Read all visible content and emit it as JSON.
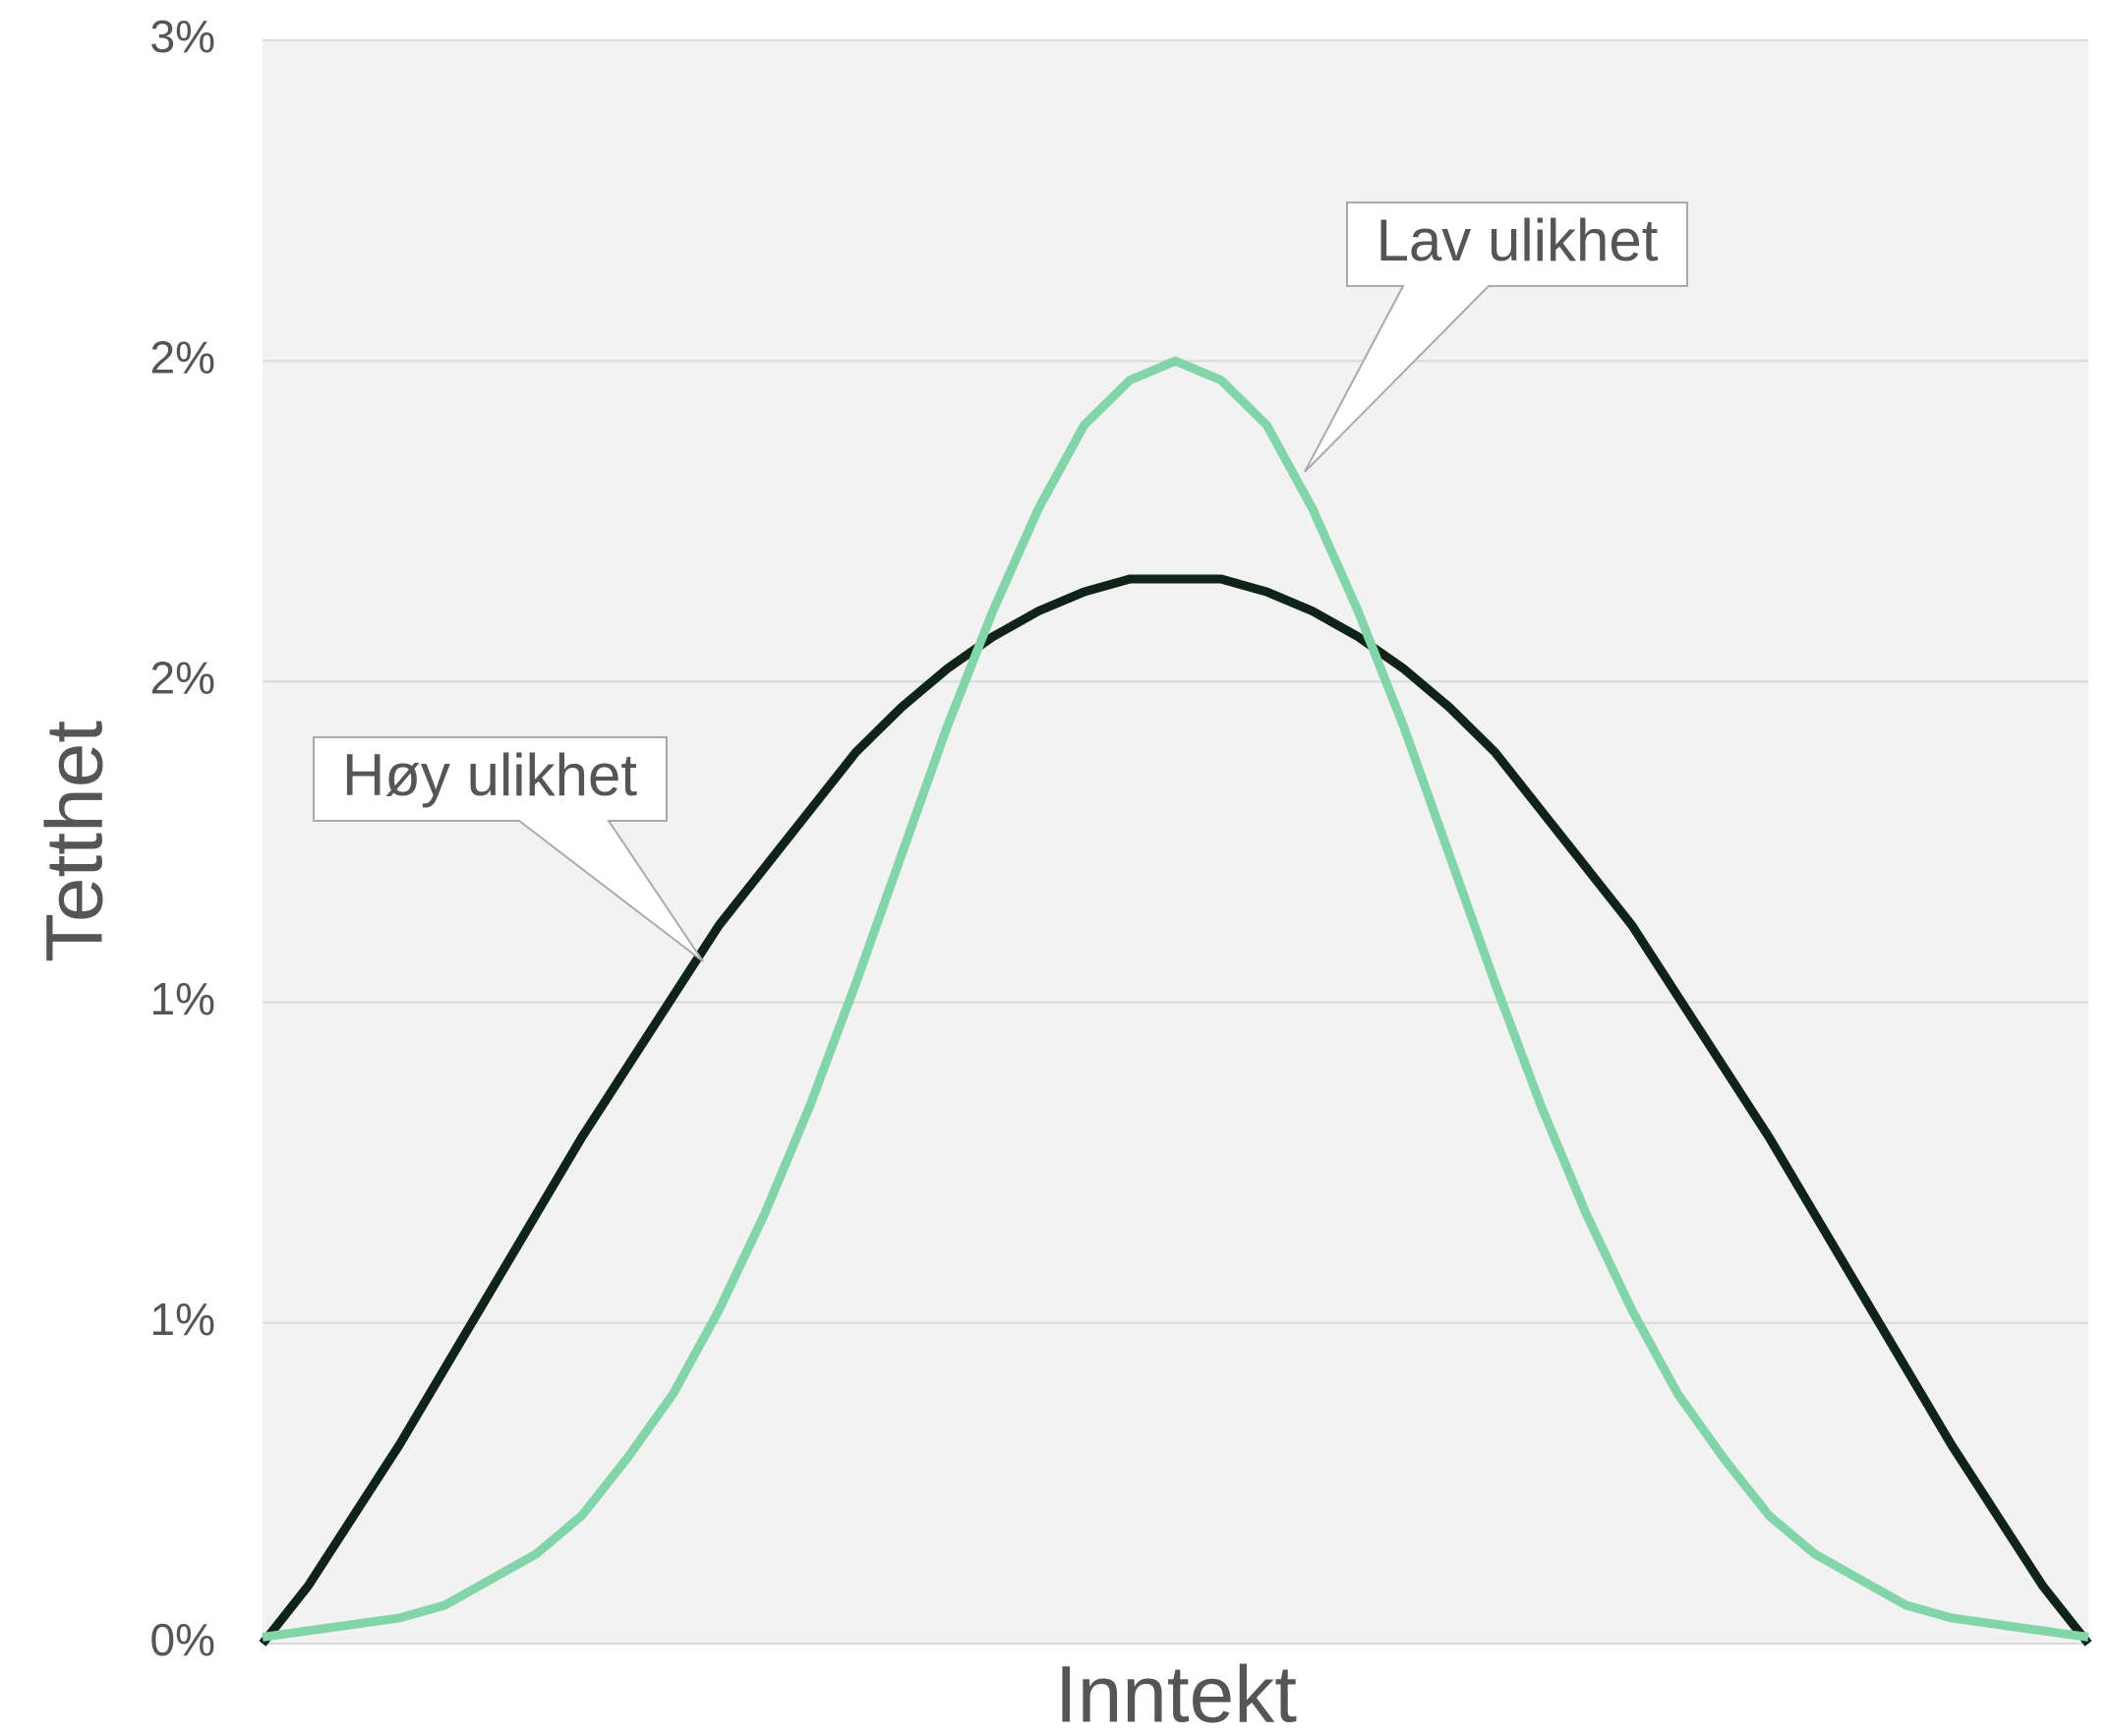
{
  "chart_data": {
    "type": "line",
    "x_label": "Inntekt",
    "y_label": "Tetthet",
    "categories": [
      null,
      null,
      null,
      null,
      null,
      null,
      null,
      null,
      null,
      null,
      null,
      null,
      null,
      null,
      null,
      null,
      null,
      null,
      null,
      null,
      null,
      null,
      null,
      null,
      null,
      null,
      null,
      null,
      null,
      null,
      null,
      null,
      null,
      null,
      null,
      null,
      null,
      null,
      null,
      null,
      null
    ],
    "series": [
      {
        "name": "Høy ulikhet",
        "color": "#0f2318",
        "values": [
          0,
          0.09,
          0.2,
          0.31,
          0.43,
          0.55,
          0.67,
          0.79,
          0.9,
          1.01,
          1.12,
          1.21,
          1.3,
          1.39,
          1.46,
          1.52,
          1.57,
          1.61,
          1.64,
          1.66,
          1.66,
          1.66,
          1.64,
          1.61,
          1.57,
          1.52,
          1.46,
          1.39,
          1.3,
          1.21,
          1.12,
          1.01,
          0.9,
          0.79,
          0.67,
          0.55,
          0.43,
          0.31,
          0.2,
          0.09,
          0
        ]
      },
      {
        "name": "Lav ulikhet",
        "color": "#82d5a9",
        "values": [
          0.01,
          0.02,
          0.03,
          0.04,
          0.06,
          0.1,
          0.14,
          0.2,
          0.29,
          0.39,
          0.52,
          0.67,
          0.84,
          1.03,
          1.23,
          1.43,
          1.61,
          1.77,
          1.9,
          1.97,
          2,
          1.97,
          1.9,
          1.77,
          1.61,
          1.43,
          1.23,
          1.03,
          0.84,
          0.67,
          0.52,
          0.39,
          0.29,
          0.2,
          0.14,
          0.1,
          0.06,
          0.04,
          0.03,
          0.02,
          0.01
        ]
      }
    ],
    "ylim": [
      0,
      2.5
    ],
    "yticks": [
      {
        "value": 0,
        "label": "0%"
      },
      {
        "value": 0.5,
        "label": "1%"
      },
      {
        "value": 1,
        "label": "1%"
      },
      {
        "value": 1.5,
        "label": "2%"
      },
      {
        "value": 2,
        "label": "2%"
      },
      {
        "value": 2.5,
        "label": "3%"
      }
    ],
    "grid": true
  }
}
